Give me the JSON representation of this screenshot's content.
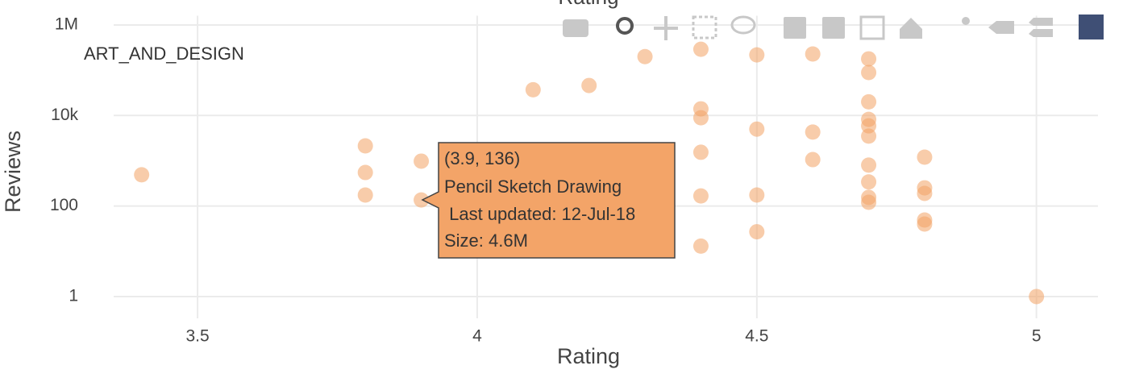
{
  "chart_data": {
    "type": "scatter",
    "title": "Rating",
    "x_label": "Rating",
    "y_label": "Reviews",
    "annotation": "ART_AND_DESIGN",
    "x": [
      3.4,
      3.8,
      3.8,
      3.8,
      3.9,
      3.9,
      4.1,
      4.2,
      4.3,
      4.4,
      4.4,
      4.4,
      4.4,
      4.4,
      4.4,
      4.5,
      4.5,
      4.5,
      4.5,
      4.6,
      4.6,
      4.6,
      4.7,
      4.7,
      4.7,
      4.7,
      4.7,
      4.7,
      4.7,
      4.7,
      4.7,
      4.7,
      4.8,
      4.8,
      4.8,
      4.8,
      4.8,
      5.0
    ],
    "values": [
      490,
      2130,
      550,
      175,
      980,
      136,
      37000,
      46000,
      200000,
      290000,
      14000,
      8900,
      1540,
      167,
      13,
      218000,
      5000,
      175,
      27,
      228000,
      4300,
      1060,
      178000,
      89000,
      20000,
      8200,
      5900,
      3500,
      800,
      340,
      155,
      121,
      1200,
      252,
      190,
      49,
      40,
      1
    ],
    "color": "#f2a365",
    "opacity": 0.55,
    "xlim": [
      3.35,
      5.11
    ],
    "ylim": [
      0.33,
      1600000
    ],
    "log_y": true,
    "grid": true,
    "xticks": [
      3.5,
      4,
      4.5,
      5
    ],
    "yticks": [
      1,
      100,
      {
        "value": 10000,
        "label": "10k"
      },
      {
        "value": 1000000,
        "label": "1M"
      }
    ],
    "tooltip": {
      "point": 5,
      "lines": [
        "(3.9, 136)",
        "Pencil Sketch Drawing",
        " Last updated: 12-Jul-18",
        "Size: 4.6M"
      ]
    }
  }
}
